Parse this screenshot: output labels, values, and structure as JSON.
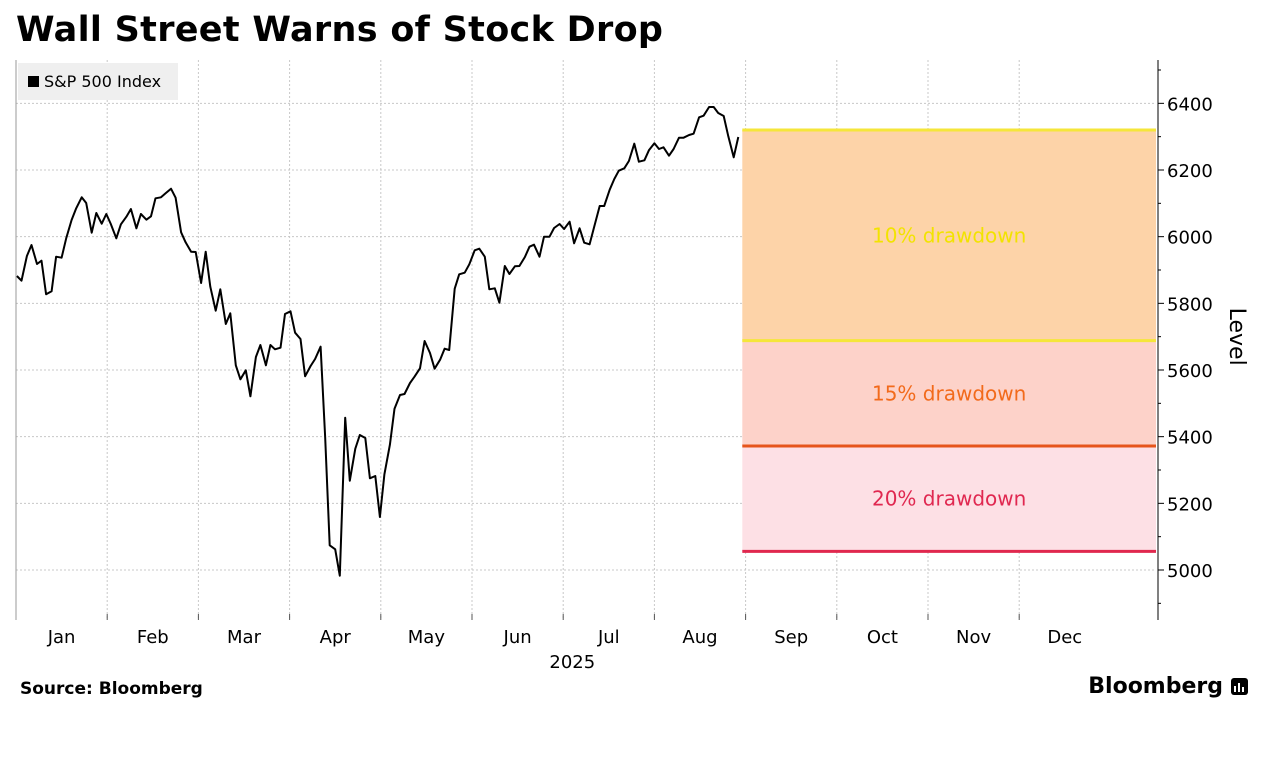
{
  "title": "Wall Street Warns of Stock Drop",
  "source": "Source: Bloomberg",
  "brand": "Bloomberg",
  "colors": {
    "line": "#000000",
    "band10": "#fdd3a8",
    "band15": "#fdd2c9",
    "band20": "#fde0e5",
    "line10": "#f5e63a",
    "line15": "#e6551c",
    "line20": "#e0284e",
    "label10": "#f2e300",
    "label15": "#f26a1b",
    "label20": "#e02850",
    "grid": "#c8c8c8"
  },
  "chart_data": {
    "type": "line",
    "title": "Wall Street Warns of Stock Drop",
    "xlabel": "2025",
    "ylabel": "Level",
    "ylim": [
      4850,
      6530
    ],
    "yticks": [
      5000,
      5200,
      5400,
      5600,
      5800,
      6000,
      6200,
      6400
    ],
    "xlim": [
      0,
      12.5
    ],
    "months": [
      "Jan",
      "Feb",
      "Mar",
      "Apr",
      "May",
      "Jun",
      "Jul",
      "Aug",
      "Sep",
      "Oct",
      "Nov",
      "Dec"
    ],
    "legend": [
      "S&P 500 Index"
    ],
    "series": [
      {
        "name": "S&P 500 Index",
        "points": [
          [
            0.01,
            5882
          ],
          [
            0.06,
            5868
          ],
          [
            0.12,
            5942
          ],
          [
            0.17,
            5975
          ],
          [
            0.23,
            5918
          ],
          [
            0.28,
            5928
          ],
          [
            0.33,
            5827
          ],
          [
            0.39,
            5836
          ],
          [
            0.44,
            5940
          ],
          [
            0.5,
            5937
          ],
          [
            0.55,
            5995
          ],
          [
            0.61,
            6050
          ],
          [
            0.66,
            6085
          ],
          [
            0.72,
            6118
          ],
          [
            0.77,
            6101
          ],
          [
            0.83,
            6012
          ],
          [
            0.88,
            6071
          ],
          [
            0.94,
            6039
          ],
          [
            0.99,
            6068
          ],
          [
            1.04,
            6038
          ],
          [
            1.1,
            5995
          ],
          [
            1.15,
            6037
          ],
          [
            1.21,
            6060
          ],
          [
            1.26,
            6083
          ],
          [
            1.32,
            6025
          ],
          [
            1.37,
            6068
          ],
          [
            1.43,
            6051
          ],
          [
            1.48,
            6061
          ],
          [
            1.53,
            6115
          ],
          [
            1.59,
            6118
          ],
          [
            1.64,
            6130
          ],
          [
            1.7,
            6144
          ],
          [
            1.75,
            6117
          ],
          [
            1.81,
            6013
          ],
          [
            1.86,
            5983
          ],
          [
            1.92,
            5955
          ],
          [
            1.97,
            5954
          ],
          [
            2.03,
            5861
          ],
          [
            2.08,
            5955
          ],
          [
            2.13,
            5850
          ],
          [
            2.19,
            5778
          ],
          [
            2.24,
            5842
          ],
          [
            2.3,
            5738
          ],
          [
            2.35,
            5770
          ],
          [
            2.41,
            5614
          ],
          [
            2.46,
            5572
          ],
          [
            2.52,
            5599
          ],
          [
            2.57,
            5521
          ],
          [
            2.63,
            5639
          ],
          [
            2.68,
            5675
          ],
          [
            2.74,
            5614
          ],
          [
            2.79,
            5675
          ],
          [
            2.84,
            5662
          ],
          [
            2.9,
            5667
          ],
          [
            2.95,
            5768
          ],
          [
            3.01,
            5776
          ],
          [
            3.06,
            5712
          ],
          [
            3.12,
            5693
          ],
          [
            3.17,
            5581
          ],
          [
            3.23,
            5612
          ],
          [
            3.28,
            5633
          ],
          [
            3.34,
            5670
          ],
          [
            3.39,
            5396
          ],
          [
            3.44,
            5074
          ],
          [
            3.5,
            5062
          ],
          [
            3.55,
            4983
          ],
          [
            3.61,
            5457
          ],
          [
            3.66,
            5268
          ],
          [
            3.72,
            5364
          ],
          [
            3.77,
            5405
          ],
          [
            3.83,
            5396
          ],
          [
            3.88,
            5275
          ],
          [
            3.94,
            5282
          ],
          [
            3.99,
            5159
          ],
          [
            4.04,
            5287
          ],
          [
            4.1,
            5376
          ],
          [
            4.15,
            5484
          ],
          [
            4.21,
            5525
          ],
          [
            4.26,
            5528
          ],
          [
            4.32,
            5561
          ],
          [
            4.37,
            5580
          ],
          [
            4.43,
            5605
          ],
          [
            4.48,
            5687
          ],
          [
            4.54,
            5651
          ],
          [
            4.59,
            5604
          ],
          [
            4.65,
            5631
          ],
          [
            4.7,
            5664
          ],
          [
            4.75,
            5660
          ],
          [
            4.81,
            5844
          ],
          [
            4.86,
            5887
          ],
          [
            4.92,
            5892
          ],
          [
            4.97,
            5917
          ],
          [
            5.03,
            5959
          ],
          [
            5.08,
            5964
          ],
          [
            5.14,
            5940
          ],
          [
            5.19,
            5842
          ],
          [
            5.25,
            5845
          ],
          [
            5.3,
            5802
          ],
          [
            5.36,
            5912
          ],
          [
            5.41,
            5888
          ],
          [
            5.47,
            5911
          ],
          [
            5.52,
            5912
          ],
          [
            5.58,
            5939
          ],
          [
            5.63,
            5970
          ],
          [
            5.68,
            5976
          ],
          [
            5.74,
            5940
          ],
          [
            5.79,
            6000
          ],
          [
            5.85,
            6000
          ],
          [
            5.9,
            6026
          ],
          [
            5.96,
            6038
          ],
          [
            6.01,
            6023
          ],
          [
            6.07,
            6045
          ],
          [
            6.12,
            5980
          ],
          [
            6.18,
            6025
          ],
          [
            6.23,
            5982
          ],
          [
            6.29,
            5977
          ],
          [
            6.34,
            6030
          ],
          [
            6.4,
            6092
          ],
          [
            6.45,
            6092
          ],
          [
            6.51,
            6141
          ],
          [
            6.56,
            6173
          ],
          [
            6.61,
            6198
          ],
          [
            6.67,
            6205
          ],
          [
            6.72,
            6227
          ],
          [
            6.78,
            6279
          ],
          [
            6.83,
            6225
          ],
          [
            6.89,
            6229
          ],
          [
            6.94,
            6259
          ],
          [
            7.0,
            6280
          ],
          [
            7.05,
            6263
          ],
          [
            7.1,
            6268
          ],
          [
            7.16,
            6243
          ],
          [
            7.21,
            6263
          ],
          [
            7.27,
            6297
          ],
          [
            7.32,
            6297
          ],
          [
            7.38,
            6305
          ],
          [
            7.43,
            6309
          ],
          [
            7.49,
            6358
          ],
          [
            7.54,
            6363
          ],
          [
            7.6,
            6389
          ],
          [
            7.65,
            6389
          ],
          [
            7.7,
            6371
          ],
          [
            7.76,
            6362
          ],
          [
            7.81,
            6301
          ],
          [
            7.87,
            6238
          ],
          [
            7.92,
            6299
          ]
        ]
      }
    ],
    "drawdown_bands": [
      {
        "label": "10% drawdown",
        "from": 6320,
        "to": 5688
      },
      {
        "label": "15% drawdown",
        "from": 5688,
        "to": 5372
      },
      {
        "label": "20% drawdown",
        "from": 5372,
        "to": 5056
      }
    ],
    "projection_start": 7.92,
    "projection_end": 12.5
  }
}
